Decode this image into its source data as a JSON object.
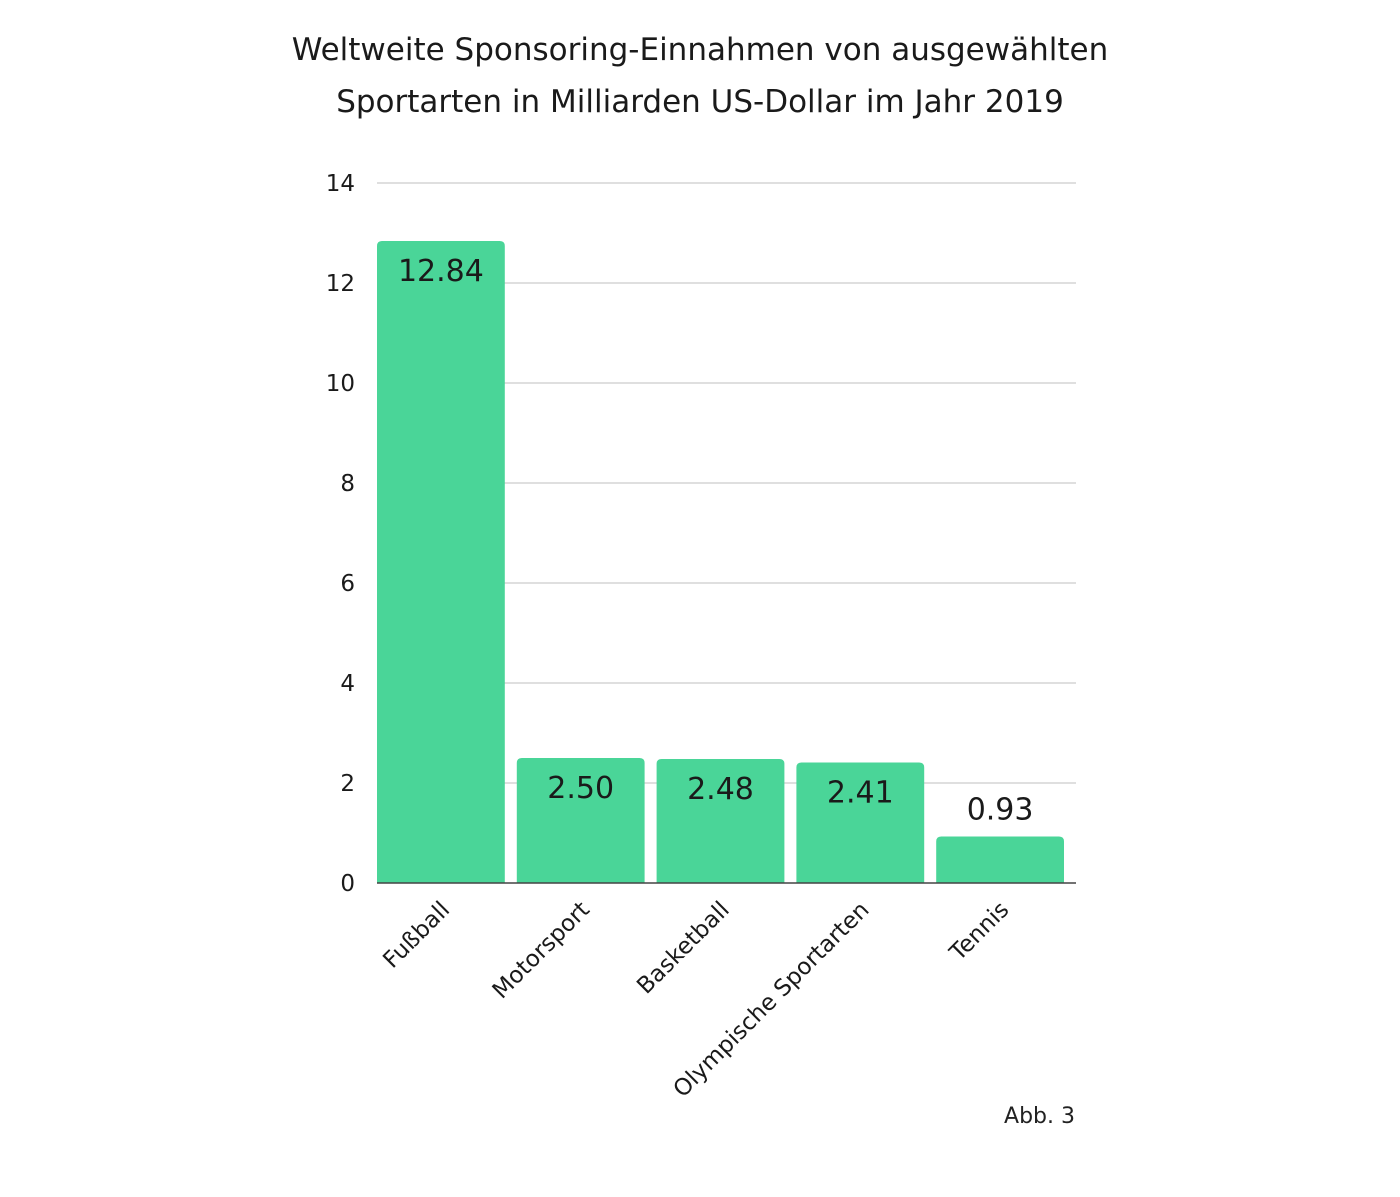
{
  "chart_data": {
    "type": "bar",
    "title_lines": [
      "Weltweite Sponsoring-Einnahmen von ausgewählten",
      "Sportarten in Milliarden US-Dollar im Jahr 2019"
    ],
    "categories": [
      "Fußball",
      "Motorsport",
      "Basketball",
      "Olympische Sportarten",
      "Tennis"
    ],
    "values": [
      12.84,
      2.5,
      2.48,
      2.41,
      0.93
    ],
    "value_labels": [
      "12.84",
      "2.50",
      "2.48",
      "2.41",
      "0.93"
    ],
    "ylim": [
      0,
      14
    ],
    "yticks": [
      "0",
      "2",
      "4",
      "6",
      "8",
      "10",
      "12",
      "14"
    ],
    "xlabel": "",
    "ylabel": "",
    "grid": true,
    "bar_color": "#4ad598",
    "grid_color": "#cccccc"
  },
  "note": "Abb. 3"
}
